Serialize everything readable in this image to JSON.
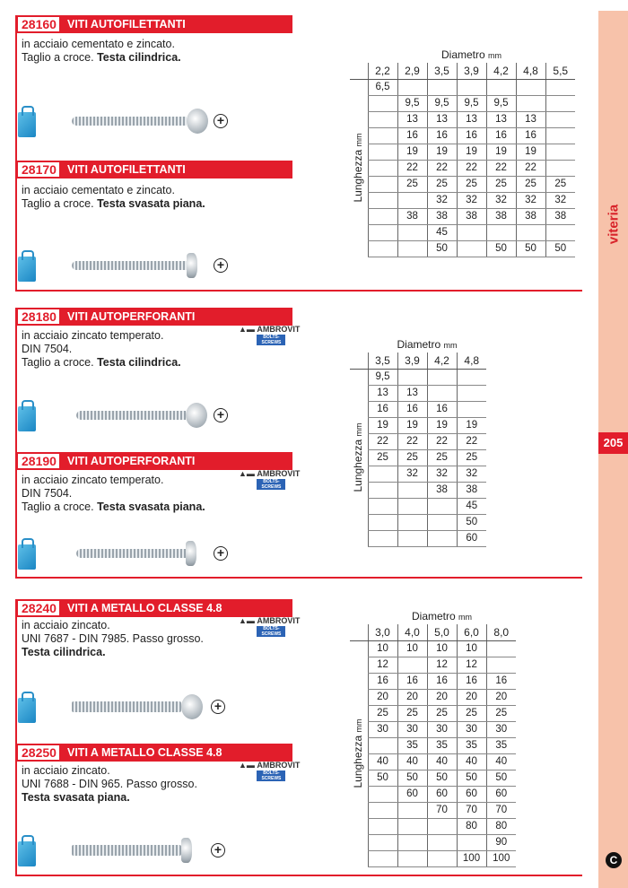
{
  "side": {
    "category": "viteria",
    "page": "205",
    "corner_mark": "C"
  },
  "products": [
    {
      "code": "28160",
      "title": "VITI AUTOFILETTANTI",
      "lines": [
        "in acciaio cementato e zincato."
      ],
      "last_plain": "Taglio a croce. ",
      "last_bold": "Testa cilindrica.",
      "icons": [
        "bag-icon",
        "pan-head-screw-image",
        "phillips-icon"
      ]
    },
    {
      "code": "28170",
      "title": "VITI AUTOFILETTANTI",
      "lines": [
        "in acciaio cementato e zincato."
      ],
      "last_plain": "Taglio a croce. ",
      "last_bold": "Testa svasata piana.",
      "icons": [
        "bag-icon",
        "countersunk-screw-image",
        "phillips-icon"
      ]
    },
    {
      "code": "28180",
      "title": "VITI AUTOPERFORANTI",
      "lines": [
        "in acciaio zincato temperato.",
        "DIN 7504."
      ],
      "last_plain": "Taglio a croce. ",
      "last_bold": "Testa cilindrica.",
      "logo": "AMBROVIT"
    },
    {
      "code": "28190",
      "title": "VITI AUTOPERFORANTI",
      "lines": [
        "in acciaio zincato temperato.",
        "DIN 7504."
      ],
      "last_plain": "Taglio a croce. ",
      "last_bold": "Testa svasata piana.",
      "logo": "AMBROVIT"
    },
    {
      "code": "28240",
      "title": "VITI A METALLO CLASSE 4.8",
      "lines": [
        "in acciaio zincato.",
        "UNI 7687 - DIN 7985. Passo grosso."
      ],
      "last_plain": "",
      "last_bold": "Testa cilindrica.",
      "logo": "AMBROVIT"
    },
    {
      "code": "28250",
      "title": "VITI A METALLO CLASSE 4.8",
      "lines": [
        "in acciaio zincato.",
        "UNI 7688 - DIN 965. Passo grosso."
      ],
      "last_plain": "",
      "last_bold": "Testa svasata piana.",
      "logo": "AMBROVIT"
    }
  ],
  "tables": [
    {
      "col_label": "Diametro",
      "col_unit": "mm",
      "row_label": "Lunghezza",
      "row_unit": "mm",
      "columns": [
        "2,2",
        "2,9",
        "3,5",
        "3,9",
        "4,2",
        "4,8",
        "5,5"
      ],
      "rows": [
        [
          "6,5",
          "",
          "",
          "",
          "",
          "",
          ""
        ],
        [
          "",
          "9,5",
          "9,5",
          "9,5",
          "9,5",
          "",
          ""
        ],
        [
          "",
          "13",
          "13",
          "13",
          "13",
          "13",
          ""
        ],
        [
          "",
          "16",
          "16",
          "16",
          "16",
          "16",
          ""
        ],
        [
          "",
          "19",
          "19",
          "19",
          "19",
          "19",
          ""
        ],
        [
          "",
          "22",
          "22",
          "22",
          "22",
          "22",
          ""
        ],
        [
          "",
          "25",
          "25",
          "25",
          "25",
          "25",
          "25"
        ],
        [
          "",
          "",
          "32",
          "32",
          "32",
          "32",
          "32"
        ],
        [
          "",
          "38",
          "38",
          "38",
          "38",
          "38",
          "38"
        ],
        [
          "",
          "",
          "45",
          "",
          "",
          "",
          ""
        ],
        [
          "",
          "",
          "50",
          "",
          "50",
          "50",
          "50"
        ]
      ]
    },
    {
      "col_label": "Diametro",
      "col_unit": "mm",
      "row_label": "Lunghezza",
      "row_unit": "mm",
      "columns": [
        "3,5",
        "3,9",
        "4,2",
        "4,8"
      ],
      "rows": [
        [
          "9,5",
          "",
          "",
          ""
        ],
        [
          "13",
          "13",
          "",
          ""
        ],
        [
          "16",
          "16",
          "16",
          ""
        ],
        [
          "19",
          "19",
          "19",
          "19"
        ],
        [
          "22",
          "22",
          "22",
          "22"
        ],
        [
          "25",
          "25",
          "25",
          "25"
        ],
        [
          "",
          "32",
          "32",
          "32"
        ],
        [
          "",
          "",
          "38",
          "38"
        ],
        [
          "",
          "",
          "",
          "45"
        ],
        [
          "",
          "",
          "",
          "50"
        ],
        [
          "",
          "",
          "",
          "60"
        ]
      ]
    },
    {
      "col_label": "Diametro",
      "col_unit": "mm",
      "row_label": "Lunghezza",
      "row_unit": "mm",
      "columns": [
        "3,0",
        "4,0",
        "5,0",
        "6,0",
        "8,0"
      ],
      "rows": [
        [
          "10",
          "10",
          "10",
          "10",
          ""
        ],
        [
          "12",
          "",
          "12",
          "12",
          ""
        ],
        [
          "16",
          "16",
          "16",
          "16",
          "16"
        ],
        [
          "20",
          "20",
          "20",
          "20",
          "20"
        ],
        [
          "25",
          "25",
          "25",
          "25",
          "25"
        ],
        [
          "30",
          "30",
          "30",
          "30",
          "30"
        ],
        [
          "",
          "35",
          "35",
          "35",
          "35"
        ],
        [
          "40",
          "40",
          "40",
          "40",
          "40"
        ],
        [
          "50",
          "50",
          "50",
          "50",
          "50"
        ],
        [
          "",
          "60",
          "60",
          "60",
          "60"
        ],
        [
          "",
          "",
          "70",
          "70",
          "70"
        ],
        [
          "",
          "",
          "",
          "80",
          "80"
        ],
        [
          "",
          "",
          "",
          "",
          "90"
        ],
        [
          "",
          "",
          "",
          "100",
          "100"
        ]
      ]
    }
  ]
}
